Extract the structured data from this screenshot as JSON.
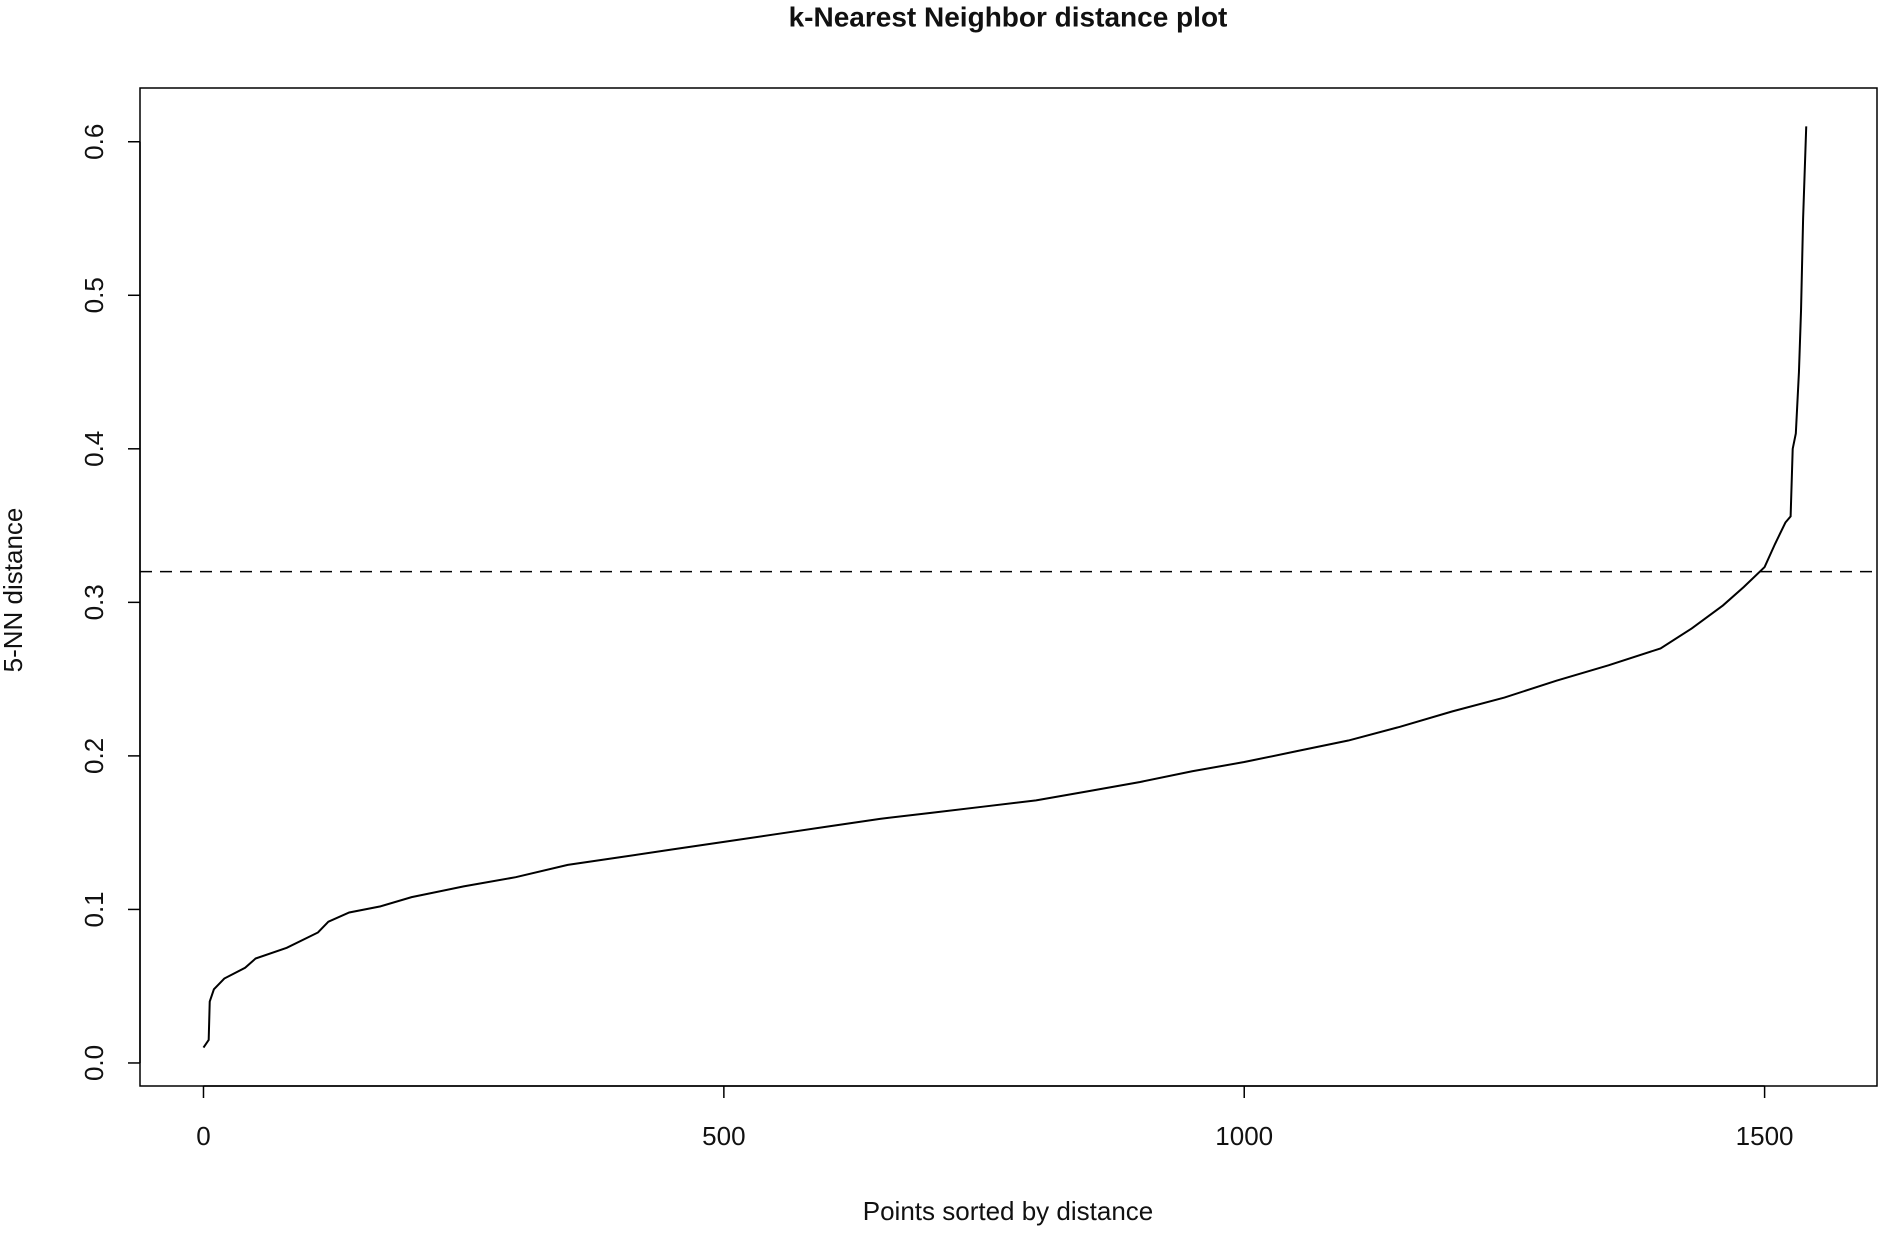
{
  "chart_data": {
    "type": "line",
    "title": "k-Nearest Neighbor distance plot",
    "x_label": "Points sorted by distance",
    "y_label": "5-NN distance",
    "series": [
      {
        "name": "5-NN distance",
        "color": "#000000",
        "x": [
          0,
          5,
          6,
          10,
          20,
          40,
          50,
          80,
          110,
          120,
          140,
          170,
          200,
          250,
          300,
          350,
          400,
          450,
          500,
          550,
          600,
          650,
          700,
          750,
          800,
          850,
          900,
          950,
          1000,
          1050,
          1100,
          1150,
          1200,
          1250,
          1300,
          1350,
          1400,
          1430,
          1460,
          1480,
          1500,
          1510,
          1520,
          1525,
          1527,
          1530,
          1533,
          1535,
          1537,
          1540
        ],
        "values": [
          0.01,
          0.015,
          0.04,
          0.048,
          0.055,
          0.062,
          0.068,
          0.075,
          0.085,
          0.092,
          0.098,
          0.102,
          0.108,
          0.115,
          0.121,
          0.129,
          0.134,
          0.139,
          0.144,
          0.149,
          0.154,
          0.159,
          0.163,
          0.167,
          0.171,
          0.177,
          0.183,
          0.19,
          0.196,
          0.203,
          0.21,
          0.219,
          0.229,
          0.238,
          0.249,
          0.259,
          0.27,
          0.283,
          0.298,
          0.31,
          0.323,
          0.338,
          0.352,
          0.356,
          0.4,
          0.41,
          0.45,
          0.49,
          0.55,
          0.61
        ]
      }
    ],
    "hline": {
      "value": 0.32,
      "dashed": true
    },
    "xlim": [
      -61,
      1608
    ],
    "ylim": [
      -0.015,
      0.635
    ],
    "xticks": [
      0,
      500,
      1000,
      1500
    ],
    "yticks": [
      {
        "value": 0,
        "label": "0.0"
      },
      0.1,
      0.2,
      0.3,
      0.4,
      0.5,
      0.6
    ],
    "grid": false
  }
}
